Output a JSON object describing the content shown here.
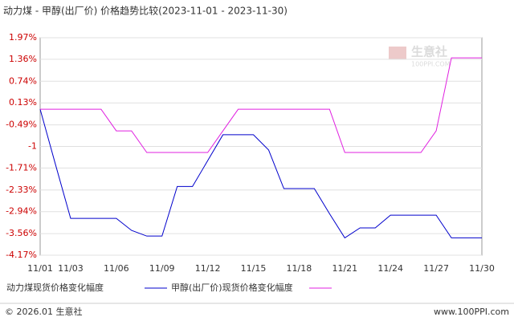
{
  "chart_data": {
    "type": "line",
    "title": "动力煤 - 甲醇(出厂价) 价格趋势比较(2023-11-01 - 2023-11-30)",
    "categories": [
      "11/01",
      null,
      "11/03",
      null,
      null,
      "11/06",
      null,
      null,
      "11/09",
      null,
      null,
      "11/12",
      null,
      null,
      "11/15",
      null,
      null,
      "11/18",
      null,
      null,
      "11/21",
      null,
      null,
      "11/24",
      null,
      null,
      "11/27",
      null,
      null,
      "11/30"
    ],
    "series": [
      {
        "name": "动力煤现货价格变化幅度",
        "color": "#0000cc",
        "values": [
          -0.05,
          -1.6,
          -3.13,
          -3.13,
          -3.13,
          -3.13,
          -3.47,
          -3.63,
          -3.63,
          -2.23,
          -2.23,
          -1.5,
          -0.77,
          -0.77,
          -0.77,
          -1.2,
          -2.29,
          -2.29,
          -2.29,
          -3.0,
          -3.68,
          -3.4,
          -3.4,
          -3.04,
          -3.04,
          -3.04,
          -3.04,
          -3.68,
          -3.68,
          -3.68
        ]
      },
      {
        "name": "甲醇(出厂价)现货价格变化幅度",
        "color": "#e020e0",
        "values": [
          -0.05,
          -0.05,
          -0.05,
          -0.05,
          -0.05,
          -0.66,
          -0.66,
          -1.27,
          -1.27,
          -1.27,
          -1.27,
          -1.27,
          -0.66,
          -0.05,
          -0.05,
          -0.05,
          -0.05,
          -0.05,
          -0.05,
          -0.05,
          -1.27,
          -1.27,
          -1.27,
          -1.27,
          -1.27,
          -1.27,
          -0.66,
          1.4,
          1.4,
          1.4
        ]
      }
    ],
    "ylim": [
      -4.17,
      1.97
    ],
    "yticks": [
      {
        "value": 1.97,
        "label": "1.97%"
      },
      {
        "value": 1.36,
        "label": "1.36%"
      },
      {
        "value": 0.74,
        "label": "0.74%"
      },
      {
        "value": 0.13,
        "label": "0.13%"
      },
      {
        "value": -0.49,
        "label": "-0.49%"
      },
      {
        "value": -1.1,
        "label": "-1"
      },
      {
        "value": -1.71,
        "label": "-1.71%"
      },
      {
        "value": -2.33,
        "label": "-2.33%"
      },
      {
        "value": -2.94,
        "label": "-2.94%"
      },
      {
        "value": -3.56,
        "label": "-3.56%"
      },
      {
        "value": -4.17,
        "label": "-4.17%"
      }
    ],
    "grid": true,
    "watermark": {
      "name": "生意社",
      "site": "100PPI.COM"
    },
    "footer": {
      "left": "© 2026.01 生意社",
      "right": "www.100PPI.com"
    }
  }
}
